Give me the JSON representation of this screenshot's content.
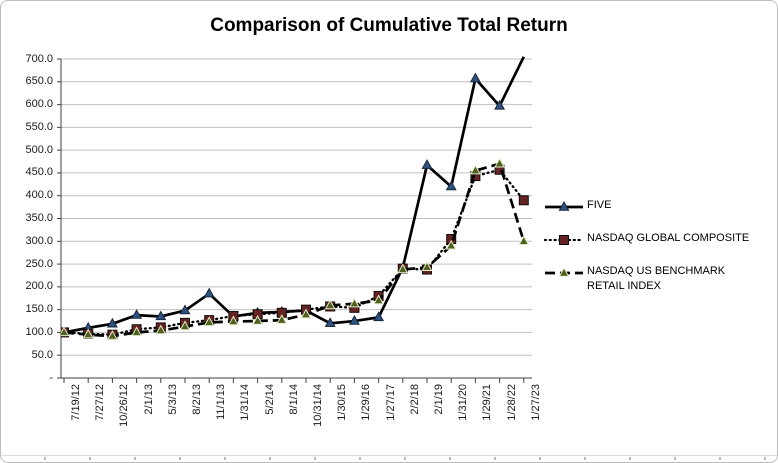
{
  "title": "Comparison of Cumulative Total Return",
  "chart_data": {
    "type": "line",
    "title": "Comparison of Cumulative Total Return",
    "xlabel": "",
    "ylabel": "",
    "ylim": [
      0,
      700
    ],
    "y_tick_step": 50,
    "y_tick_labels": [
      "700.0",
      "650.0",
      "600.0",
      "550.0",
      "500.0",
      "450.0",
      "400.0",
      "350.0",
      "300.0",
      "250.0",
      "200.0",
      "150.0",
      "100.0",
      "50.0",
      "-"
    ],
    "grid": true,
    "legend_position": "right",
    "categories": [
      "7/19/12",
      "7/27/12",
      "10/26/12",
      "2/1/13",
      "5/3/13",
      "8/2/13",
      "11/1/13",
      "1/31/14",
      "5/2/14",
      "8/1/14",
      "10/31/14",
      "1/30/15",
      "1/29/16",
      "1/27/17",
      "2/2/18",
      "2/1/19",
      "1/31/20",
      "1/29/21",
      "1/28/22",
      "1/27/23"
    ],
    "series": [
      {
        "name": "FIVE",
        "line_style": "solid",
        "line_color": "#000000",
        "marker": "triangle",
        "marker_color": "#2e5280",
        "marker_edge": "#16263d",
        "values": [
          100,
          110,
          119,
          138,
          135,
          148,
          185,
          135,
          143,
          145,
          148,
          120,
          125,
          133,
          242,
          467,
          420,
          657,
          597,
          705
        ]
      },
      {
        "name": "NASDAQ GLOBAL COMPOSITE",
        "line_style": "dotted",
        "line_color": "#000000",
        "marker": "square",
        "marker_color": "#632423",
        "marker_edge": "#150a08",
        "values": [
          100,
          97,
          95,
          107,
          111,
          121,
          127,
          136,
          140,
          143,
          150,
          157,
          154,
          180,
          240,
          238,
          305,
          443,
          457,
          390
        ]
      },
      {
        "name": "NASDAQ US BENCHMARK RETAIL INDEX",
        "line_style": "dashed",
        "line_color": "#000000",
        "marker": "triangle",
        "marker_color": "#4e5f1f",
        "marker_edge": "#e5edca",
        "values": [
          100,
          95,
          92,
          100,
          104,
          113,
          122,
          124,
          125,
          127,
          139,
          159,
          163,
          170,
          238,
          243,
          290,
          455,
          470,
          300
        ]
      }
    ]
  }
}
